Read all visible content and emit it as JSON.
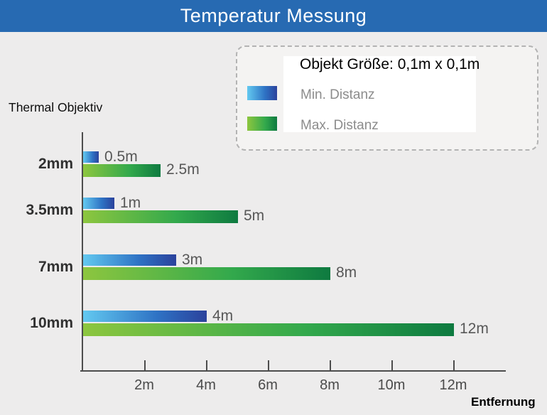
{
  "header": {
    "title": "Temperatur Messung"
  },
  "legend": {
    "title": "Objekt Größe: 0,1m x 0,1m"
  },
  "labels": {
    "group_title": "Thermal Objektiv",
    "x_axis": "Entfernung"
  },
  "colors": {
    "header_bg": "#276ab2",
    "page_bg": "#edecec",
    "axis": "#4d4d4d",
    "min_gradient_start": "#63c9f0",
    "min_gradient_end": "#2b429c",
    "max_gradient_start": "#8dc63f",
    "max_gradient_end": "#0e7a40"
  },
  "chart_data": {
    "type": "bar",
    "orientation": "horizontal",
    "title": "Temperatur Messung",
    "xlabel": "Entfernung",
    "ylabel": "Thermal Objektiv",
    "categories": [
      "2mm",
      "3.5mm",
      "7mm",
      "10mm"
    ],
    "series": [
      {
        "name": "Min. Distanz",
        "values": [
          0.5,
          1,
          3,
          4
        ],
        "value_labels": [
          "0.5m",
          "1m",
          "3m",
          "4m"
        ]
      },
      {
        "name": "Max. Distanz",
        "values": [
          2.5,
          5,
          8,
          12
        ],
        "value_labels": [
          "2.5m",
          "5m",
          "8m",
          "12m"
        ]
      }
    ],
    "x_tick_values": [
      2,
      4,
      6,
      8,
      10,
      12
    ],
    "x_tick_labels": [
      "2m",
      "4m",
      "6m",
      "8m",
      "10m",
      "12m"
    ],
    "xlim": [
      0,
      13.7
    ],
    "grid": false,
    "legend_position": "top-right",
    "legend_title": "Objekt Größe: 0,1m x 0,1m"
  }
}
